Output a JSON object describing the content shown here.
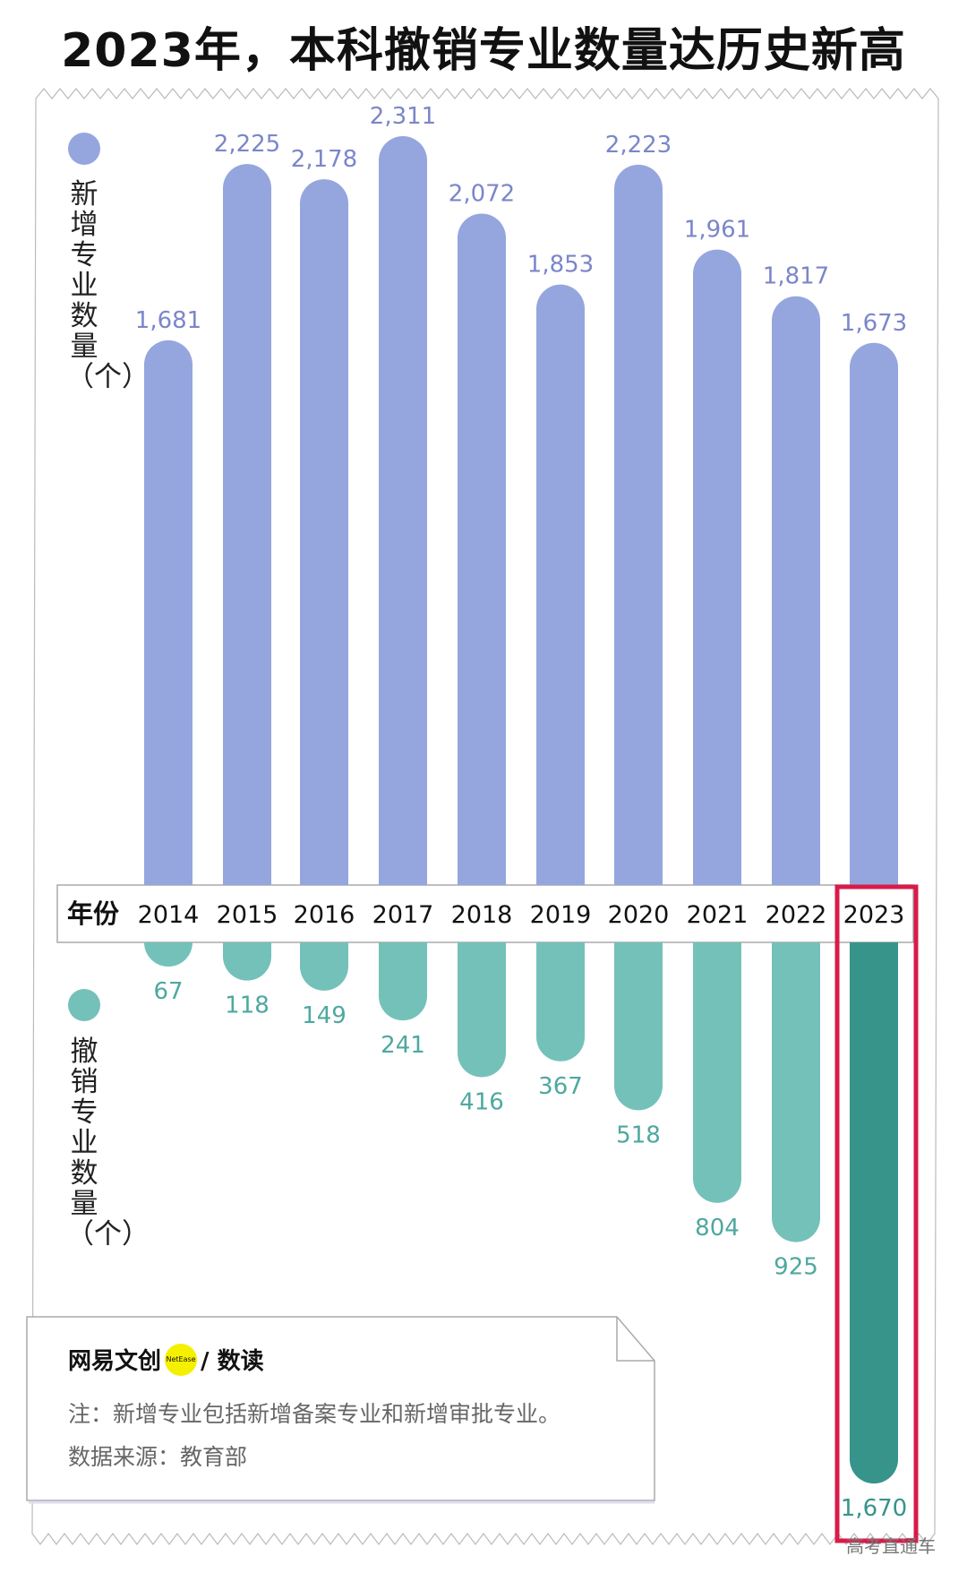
{
  "title": "2023年，本科撤销专业数量达历史新高",
  "chart_data": {
    "type": "bar",
    "title": "2023年，本科撤销专业数量达历史新高",
    "axis_label": "年份",
    "categories": [
      "2014",
      "2015",
      "2016",
      "2017",
      "2018",
      "2019",
      "2020",
      "2021",
      "2022",
      "2023"
    ],
    "series": [
      {
        "name": "新增专业数量（个）",
        "values": [
          1681,
          2225,
          2178,
          2311,
          2072,
          1853,
          2223,
          1961,
          1817,
          1673
        ],
        "labels": [
          "1,681",
          "2,225",
          "2,178",
          "2,311",
          "2,072",
          "1,853",
          "2,223",
          "1,961",
          "1,817",
          "1,673"
        ],
        "direction": "up",
        "color": "#95a6de",
        "label_color": "#7b86c9"
      },
      {
        "name": "撤销专业数量（个）",
        "values": [
          67,
          118,
          149,
          241,
          416,
          367,
          518,
          804,
          925,
          1670
        ],
        "labels": [
          "67",
          "118",
          "149",
          "241",
          "416",
          "367",
          "518",
          "804",
          "925",
          "1,670"
        ],
        "direction": "down",
        "color": "#74c1ba",
        "highlight_color": "#36948b",
        "label_color": "#4ea89f"
      }
    ],
    "highlight": "2023",
    "highlight_color": "#d81b4a",
    "grid": false
  },
  "legend": {
    "added": "新增专业数量（个）",
    "removed": "撤销专业数量（个）"
  },
  "note": {
    "brand": "网易文创",
    "brand_logo": "NetEase",
    "brand_suffix": "/ 数读",
    "note_text": "注：新增专业包括新增备案专业和新增审批专业。",
    "source": "数据来源：教育部"
  },
  "watermark": "高考直通车"
}
